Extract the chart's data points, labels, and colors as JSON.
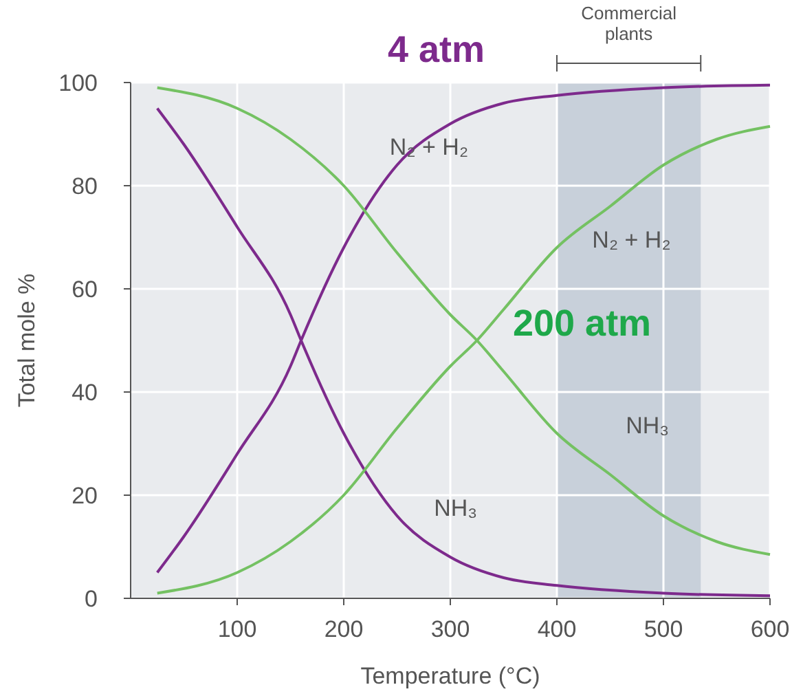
{
  "chart_data": {
    "type": "line",
    "xlabel": "Temperature (°C)",
    "ylabel": "Total mole %",
    "xlim": [
      0,
      600
    ],
    "ylim": [
      0,
      100
    ],
    "xticks": [
      100,
      200,
      300,
      400,
      500,
      600
    ],
    "yticks": [
      0,
      20,
      40,
      60,
      80,
      100
    ],
    "grid": true,
    "marker": "none",
    "line_style": "solid",
    "annotations": [
      "4 atm",
      "200 atm"
    ],
    "bands": [
      {
        "axis": "x",
        "from": 400,
        "to": 535,
        "label": "Commercial plants",
        "color": "#c8d0da"
      }
    ],
    "series": [
      {
        "name": "N₂ + H₂",
        "color": "#7d2a8c",
        "x": [
          25,
          50,
          100,
          150,
          160,
          200,
          250,
          300,
          350,
          400,
          500,
          600
        ],
        "values": [
          5,
          12,
          28,
          45,
          50,
          68,
          84,
          92,
          96,
          97.5,
          99,
          99.5
        ]
      },
      {
        "name": "NH₃",
        "color": "#7d2a8c",
        "x": [
          25,
          50,
          100,
          150,
          160,
          200,
          250,
          300,
          350,
          400,
          500,
          600
        ],
        "values": [
          95,
          88,
          72,
          55,
          50,
          32,
          16,
          8,
          4,
          2.5,
          1,
          0.5
        ]
      },
      {
        "name": "N₂ + H₂",
        "color": "#74c162",
        "x": [
          25,
          100,
          150,
          200,
          250,
          300,
          325,
          350,
          400,
          450,
          500,
          550,
          600
        ],
        "values": [
          1,
          5,
          11,
          20,
          33,
          45,
          50,
          56,
          68,
          76,
          84,
          89,
          91.5
        ]
      },
      {
        "name": "NH₃",
        "color": "#74c162",
        "x": [
          25,
          100,
          150,
          200,
          250,
          300,
          325,
          350,
          400,
          450,
          500,
          550,
          600
        ],
        "values": [
          99,
          95,
          89,
          80,
          67,
          55,
          50,
          44,
          32,
          24,
          16,
          11,
          8.5
        ]
      }
    ]
  }
}
